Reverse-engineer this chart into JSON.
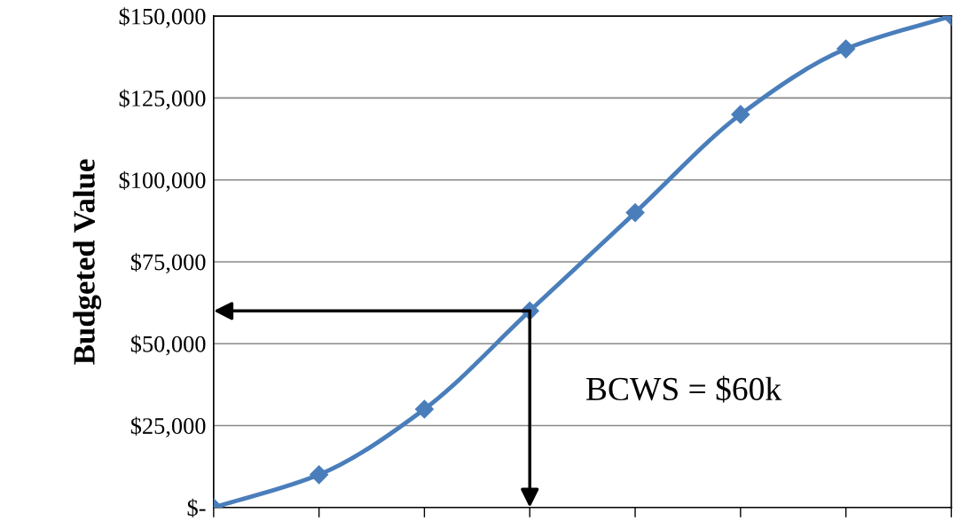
{
  "chart_data": {
    "type": "line",
    "ylabel": "Budgeted Value",
    "categories": [
      null,
      null,
      null,
      null,
      null,
      null,
      null,
      null
    ],
    "series": [
      {
        "color": "#4a7ebb",
        "values": [
          0,
          10000,
          30000,
          60000,
          90000,
          120000,
          140000,
          150000
        ]
      }
    ],
    "ylim": [
      0,
      150000
    ],
    "yticks": [
      {
        "value": 0,
        "label": "$-"
      },
      {
        "value": 25000,
        "label": "$25,000"
      },
      {
        "value": 50000,
        "label": "$50,000"
      },
      {
        "value": 75000,
        "label": "$75,000"
      },
      {
        "value": 100000,
        "label": "$100,000"
      },
      {
        "value": 125000,
        "label": "$125,000"
      },
      {
        "value": 150000,
        "label": "$150,000"
      }
    ],
    "grid": "y",
    "marker": "diamond",
    "line_style": "solid",
    "annotations": [
      "BCWS = $60k"
    ]
  }
}
